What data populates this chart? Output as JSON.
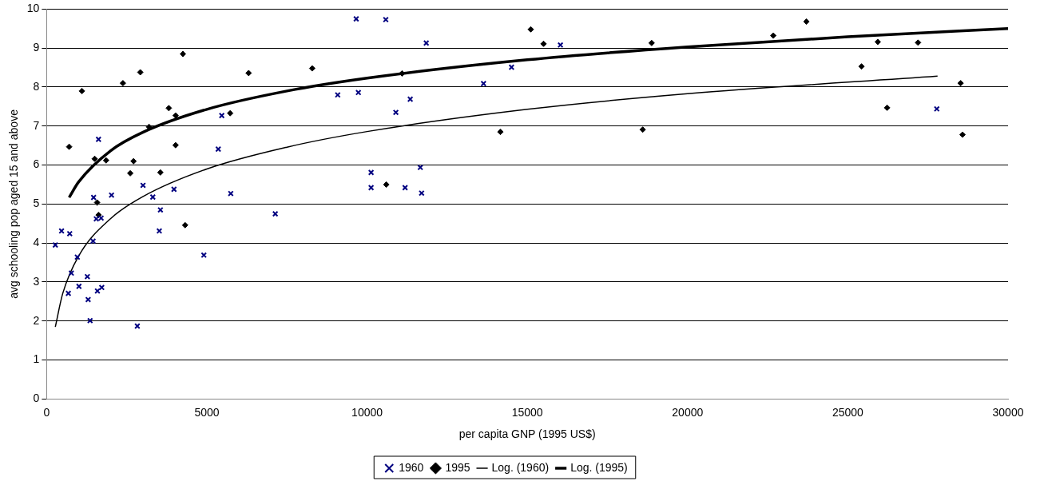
{
  "chart_data": {
    "type": "scatter",
    "xlabel": "per capita GNP (1995 US$)",
    "ylabel": "avg schooling pop aged 15 and above",
    "xlim": [
      0,
      30000
    ],
    "xticks": [
      0,
      5000,
      10000,
      15000,
      20000,
      25000,
      30000
    ],
    "ylim": [
      0,
      10
    ],
    "yticks": [
      0,
      1,
      2,
      3,
      4,
      5,
      6,
      7,
      8,
      9,
      10
    ],
    "grid": "y",
    "legend": "bottom",
    "series": [
      {
        "name": "1960",
        "marker": "cross",
        "color": "#000080",
        "x": [
          9660,
          10583,
          11846,
          16032,
          14507,
          13633,
          9083,
          9728,
          11346,
          10897,
          10125,
          11660,
          10125,
          11185,
          11701,
          27776,
          1619,
          5465,
          5355,
          1466,
          2025,
          3008,
          3313,
          3974,
          5745,
          3551,
          7135,
          1550,
          1700,
          466,
          720,
          271,
          3516,
          1449,
          958,
          4906,
          771,
          1271,
          1009,
          1720,
          1585,
          678,
          1296,
          1356,
          2830
        ],
        "values": [
          9.75,
          9.73,
          9.13,
          9.08,
          8.51,
          8.09,
          7.8,
          7.86,
          7.69,
          7.35,
          5.81,
          5.94,
          5.42,
          5.42,
          5.28,
          7.44,
          6.66,
          7.27,
          6.41,
          5.17,
          5.23,
          5.48,
          5.18,
          5.38,
          5.27,
          4.85,
          4.75,
          4.62,
          4.64,
          4.31,
          4.24,
          3.95,
          4.31,
          4.05,
          3.64,
          3.69,
          3.23,
          3.14,
          2.89,
          2.86,
          2.77,
          2.71,
          2.55,
          2.01,
          1.87
        ]
      },
      {
        "name": "1995",
        "marker": "diamond",
        "color": "#000000",
        "x": [
          4253,
          1101,
          2381,
          2923,
          6304,
          3813,
          4025,
          3195,
          5727,
          703,
          1500,
          1856,
          4025,
          2712,
          2610,
          3551,
          1576,
          1620,
          4321,
          8287,
          11091,
          15107,
          15506,
          14159,
          10600,
          18879,
          18600,
          22675,
          23709,
          25936,
          27191,
          25428,
          26226,
          28521,
          28580
        ],
        "values": [
          8.85,
          7.9,
          8.1,
          8.38,
          8.36,
          7.46,
          7.27,
          6.98,
          7.33,
          6.47,
          6.16,
          6.12,
          6.51,
          6.1,
          5.79,
          5.81,
          5.04,
          4.72,
          4.46,
          8.48,
          8.35,
          9.48,
          9.11,
          6.85,
          5.5,
          9.13,
          6.91,
          9.32,
          9.68,
          9.16,
          9.14,
          8.53,
          7.47,
          8.1,
          6.78
        ]
      },
      {
        "name": "Log. (1960)",
        "type": "line",
        "marker": "none",
        "color": "#000000",
        "x": [
          271,
          500,
          1000,
          2000,
          3000,
          5000,
          7500,
          10000,
          15000,
          20000,
          27800
        ],
        "values": [
          1.85,
          2.7,
          3.67,
          4.63,
          5.19,
          5.9,
          6.46,
          6.86,
          7.43,
          7.83,
          8.28
        ]
      },
      {
        "name": "Log. (1995)",
        "type": "line",
        "marker": "none",
        "color": "#000000",
        "x": [
          703,
          1000,
          2000,
          3000,
          5000,
          7500,
          10000,
          15000,
          20000,
          25000,
          30000
        ],
        "values": [
          5.17,
          5.57,
          6.37,
          6.84,
          7.43,
          7.9,
          8.23,
          8.7,
          9.03,
          9.29,
          9.5
        ]
      }
    ]
  }
}
